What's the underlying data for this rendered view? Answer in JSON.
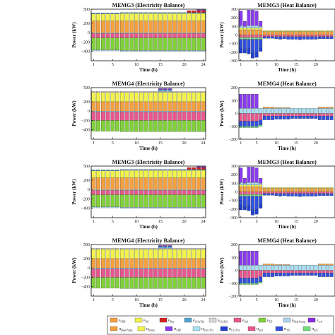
{
  "colors": {
    "chp": "#f4a040",
    "ng": "#f2f24a",
    "buy": "#d62020",
    "dch_es": "#4fa3d0",
    "ch_es": "#d9d9d9",
    "sell": "#e8588f",
    "ed": "#80d13a",
    "heat_pump": "#a8d6f0",
    "ech": "#8a2be2",
    "h_heat_pump": "#f4a040",
    "h_boiler": "#f2f24a",
    "h_chp": "#8a3cf0",
    "h_dch_ts": "#a8e0f5",
    "h_ch_ts": "#2040d0",
    "h_sell": "#e8588f",
    "h_td": "#3050e0",
    "h_ch_eh": "#6ee07a"
  },
  "chart_data": [
    {
      "type": "bar",
      "stacked": true,
      "title": "MEMG3 (Electricity Balance)",
      "xlabel": "Time (h)",
      "ylabel": "Power (kW)",
      "ylim": [
        -600,
        500
      ],
      "yticks": [
        500,
        200,
        0,
        -200,
        -400
      ],
      "xticks": [
        1,
        5,
        10,
        15,
        20,
        24
      ],
      "x": [
        1,
        2,
        3,
        4,
        5,
        6,
        7,
        8,
        9,
        10,
        11,
        12,
        13,
        14,
        15,
        16,
        17,
        18,
        19,
        20,
        21,
        22,
        23,
        24
      ],
      "series": [
        {
          "key": "chp",
          "values": [
            250,
            250,
            250,
            250,
            250,
            250,
            250,
            250,
            250,
            250,
            250,
            250,
            250,
            250,
            250,
            250,
            250,
            250,
            250,
            250,
            250,
            250,
            250,
            250
          ]
        },
        {
          "key": "ng",
          "values": [
            150,
            150,
            150,
            150,
            150,
            150,
            160,
            160,
            160,
            160,
            160,
            160,
            160,
            160,
            160,
            160,
            160,
            160,
            160,
            160,
            160,
            160,
            160,
            160
          ]
        },
        {
          "key": "dch_es",
          "values": [
            20,
            20,
            20,
            20,
            20,
            20,
            20,
            20,
            20,
            20,
            20,
            20,
            20,
            20,
            20,
            20,
            20,
            20,
            20,
            20,
            20,
            20,
            20,
            20
          ]
        },
        {
          "key": "buy",
          "values": [
            0,
            0,
            0,
            0,
            0,
            0,
            0,
            0,
            0,
            0,
            0,
            0,
            0,
            0,
            0,
            0,
            0,
            0,
            0,
            0,
            40,
            40,
            40,
            40
          ]
        },
        {
          "key": "ech",
          "values": [
            0,
            0,
            0,
            0,
            0,
            0,
            0,
            0,
            0,
            0,
            0,
            0,
            0,
            0,
            0,
            0,
            0,
            0,
            0,
            0,
            0,
            0,
            20,
            20
          ]
        },
        {
          "key": "ch_es",
          "values": [
            -20,
            -20,
            -20,
            -20,
            -20,
            -20,
            -20,
            -20,
            -20,
            -20,
            -20,
            -20,
            -20,
            -20,
            -20,
            -20,
            -20,
            -20,
            -20,
            -20,
            -20,
            -20,
            -20,
            -20
          ]
        },
        {
          "key": "sell",
          "values": [
            -90,
            -90,
            -90,
            -90,
            -90,
            -90,
            -90,
            -90,
            -90,
            -90,
            -90,
            -90,
            -90,
            -90,
            -90,
            -90,
            -90,
            -90,
            -90,
            -90,
            -90,
            -90,
            -90,
            -90
          ]
        },
        {
          "key": "ed",
          "values": [
            -260,
            -260,
            -260,
            -260,
            -260,
            -260,
            -270,
            -270,
            -270,
            -270,
            -270,
            -270,
            -270,
            -270,
            -270,
            -270,
            -270,
            -270,
            -270,
            -270,
            -270,
            -270,
            -270,
            -270
          ]
        },
        {
          "key": "heat_pump",
          "values": [
            -20,
            -20,
            -20,
            -20,
            -20,
            -20,
            -20,
            -20,
            -20,
            -20,
            -20,
            -20,
            -20,
            -20,
            -20,
            -20,
            -20,
            -20,
            -20,
            -20,
            -20,
            -20,
            -20,
            -20
          ]
        }
      ]
    },
    {
      "type": "bar",
      "stacked": true,
      "title": "MEMG3 (Heat Balance)",
      "xlabel": "Time (h)",
      "ylabel": "Power (kW)",
      "ylim": [
        -300,
        300
      ],
      "yticks": [
        300,
        200,
        100,
        0,
        -100,
        -200,
        -300
      ],
      "xticks": [
        1,
        5,
        10,
        15,
        20
      ],
      "xmax": 24,
      "x": [
        1,
        2,
        3,
        4,
        5,
        6,
        7,
        8,
        9,
        10,
        11,
        12,
        13,
        14,
        15,
        16,
        17,
        18,
        19,
        20,
        21,
        22,
        23,
        24
      ],
      "series": [
        {
          "key": "h_heat_pump",
          "values": [
            60,
            60,
            60,
            60,
            60,
            60,
            40,
            40,
            40,
            40,
            40,
            40,
            40,
            40,
            40,
            40,
            40,
            40,
            40,
            40,
            40,
            40,
            40,
            40
          ]
        },
        {
          "key": "h_boiler",
          "values": [
            20,
            20,
            20,
            20,
            20,
            20,
            10,
            10,
            10,
            10,
            10,
            10,
            10,
            10,
            10,
            10,
            10,
            10,
            10,
            10,
            10,
            10,
            10,
            10
          ]
        },
        {
          "key": "h_dch_ts",
          "values": [
            30,
            20,
            30,
            30,
            30,
            20,
            0,
            0,
            0,
            0,
            0,
            0,
            0,
            0,
            0,
            0,
            0,
            0,
            0,
            0,
            0,
            0,
            0,
            0
          ]
        },
        {
          "key": "h_chp",
          "values": [
            170,
            60,
            180,
            180,
            170,
            60,
            0,
            0,
            0,
            0,
            0,
            0,
            0,
            0,
            0,
            0,
            0,
            0,
            0,
            0,
            0,
            0,
            0,
            0
          ]
        },
        {
          "key": "h_sell",
          "values": [
            -30,
            -30,
            -30,
            -30,
            -30,
            -30,
            -20,
            -20,
            -20,
            -20,
            -20,
            -20,
            -20,
            -20,
            -20,
            -20,
            -20,
            -20,
            -20,
            -20,
            -20,
            -20,
            -20,
            -20
          ]
        },
        {
          "key": "h_ch_eh",
          "values": [
            -20,
            -20,
            -20,
            -20,
            -20,
            -20,
            0,
            0,
            0,
            0,
            0,
            0,
            0,
            0,
            0,
            0,
            0,
            0,
            0,
            0,
            0,
            0,
            0,
            0
          ]
        },
        {
          "key": "h_td",
          "values": [
            -100,
            -120,
            -110,
            -160,
            -150,
            -100,
            -20,
            -20,
            -20,
            -25,
            -30,
            -25,
            -30,
            -30,
            -30,
            -35,
            -30,
            -30,
            -30,
            -30,
            -25,
            -25,
            -25,
            -25
          ]
        },
        {
          "key": "h_ch_ts",
          "values": [
            -60,
            -40,
            -60,
            -60,
            -60,
            -40,
            0,
            0,
            0,
            0,
            0,
            0,
            0,
            0,
            0,
            0,
            0,
            0,
            0,
            0,
            0,
            0,
            0,
            0
          ]
        }
      ]
    },
    {
      "type": "bar",
      "stacked": true,
      "title": "MEMG4 (Electricity Balance)",
      "xlabel": "Time (h)",
      "ylabel": "Power (kW)",
      "ylim": [
        -600,
        500
      ],
      "yticks": [
        500,
        200,
        0,
        -200,
        -400
      ],
      "xticks": [
        1,
        5,
        10,
        15,
        20,
        24
      ],
      "x": [
        1,
        2,
        3,
        4,
        5,
        6,
        7,
        8,
        9,
        10,
        11,
        12,
        13,
        14,
        15,
        16,
        17,
        18,
        19,
        20,
        21,
        22,
        23,
        24
      ],
      "series": [
        {
          "key": "chp",
          "values": [
            200,
            200,
            200,
            200,
            200,
            200,
            200,
            200,
            200,
            200,
            200,
            200,
            200,
            200,
            200,
            200,
            200,
            200,
            200,
            200,
            200,
            200,
            200,
            200
          ]
        },
        {
          "key": "ng",
          "values": [
            200,
            200,
            200,
            200,
            200,
            200,
            200,
            200,
            200,
            200,
            200,
            200,
            200,
            200,
            200,
            200,
            200,
            200,
            200,
            200,
            200,
            200,
            200,
            200
          ]
        },
        {
          "key": "ch_es",
          "values": [
            20,
            20,
            20,
            20,
            20,
            20,
            20,
            20,
            20,
            20,
            20,
            20,
            20,
            20,
            20,
            20,
            20,
            20,
            20,
            20,
            20,
            20,
            20,
            20
          ]
        },
        {
          "key": "dch_es",
          "values": [
            0,
            0,
            0,
            0,
            0,
            0,
            0,
            0,
            0,
            0,
            0,
            0,
            0,
            0,
            40,
            40,
            40,
            0,
            0,
            0,
            0,
            0,
            0,
            0
          ]
        },
        {
          "key": "ech",
          "values": [
            0,
            0,
            0,
            0,
            0,
            0,
            0,
            0,
            0,
            0,
            0,
            0,
            0,
            0,
            20,
            20,
            20,
            0,
            0,
            0,
            0,
            0,
            0,
            0
          ]
        },
        {
          "key": "heat_pump",
          "values": [
            -20,
            -20,
            -20,
            -20,
            -20,
            -20,
            -20,
            -20,
            -20,
            -20,
            -20,
            -20,
            -20,
            -20,
            -20,
            -20,
            -20,
            -20,
            -20,
            -20,
            -20,
            -20,
            -20,
            -20
          ]
        },
        {
          "key": "sell",
          "values": [
            -180,
            -180,
            -180,
            -180,
            -180,
            -180,
            -180,
            -180,
            -180,
            -180,
            -180,
            -180,
            -180,
            -180,
            -180,
            -180,
            -180,
            -180,
            -180,
            -180,
            -180,
            -180,
            -180,
            -180
          ]
        },
        {
          "key": "ed",
          "values": [
            -230,
            -230,
            -230,
            -230,
            -230,
            -230,
            -240,
            -240,
            -240,
            -240,
            -240,
            -240,
            -240,
            -240,
            -240,
            -240,
            -240,
            -240,
            -240,
            -240,
            -240,
            -240,
            -240,
            -240
          ]
        }
      ]
    },
    {
      "type": "bar",
      "stacked": true,
      "title": "MEMG4 (Heat Balance)",
      "xlabel": "Time (h)",
      "ylabel": "Power (kW)",
      "ylim": [
        -200,
        200
      ],
      "yticks": [
        200,
        100,
        0,
        -100,
        -200
      ],
      "xticks": [
        1,
        5,
        10,
        15,
        20
      ],
      "xmax": 24,
      "x": [
        1,
        2,
        3,
        4,
        5,
        6,
        7,
        8,
        9,
        10,
        11,
        12,
        13,
        14,
        15,
        16,
        17,
        18,
        19,
        20,
        21,
        22,
        23,
        24
      ],
      "series": [
        {
          "key": "h_dch_ts",
          "values": [
            40,
            40,
            40,
            40,
            40,
            40,
            40,
            40,
            40,
            40,
            40,
            40,
            40,
            40,
            40,
            40,
            40,
            40,
            40,
            40,
            40,
            40,
            40,
            40
          ]
        },
        {
          "key": "h_chp",
          "values": [
            110,
            110,
            110,
            110,
            110,
            0,
            0,
            0,
            0,
            0,
            0,
            0,
            0,
            0,
            0,
            0,
            0,
            0,
            0,
            0,
            0,
            0,
            0,
            0
          ]
        },
        {
          "key": "h_heat_pump",
          "values": [
            0,
            0,
            0,
            0,
            0,
            0,
            10,
            10,
            10,
            5,
            5,
            5,
            5,
            0,
            0,
            0,
            0,
            0,
            0,
            0,
            10,
            10,
            10,
            10
          ]
        },
        {
          "key": "h_sell",
          "values": [
            -60,
            -60,
            -60,
            -60,
            -60,
            -50,
            -20,
            -20,
            -20,
            -20,
            -20,
            -20,
            -20,
            -20,
            -20,
            -20,
            -20,
            -20,
            -20,
            -20,
            -20,
            -20,
            -20,
            -20
          ]
        },
        {
          "key": "h_td",
          "values": [
            -40,
            -40,
            -40,
            -40,
            -40,
            -40,
            -30,
            -30,
            -30,
            -25,
            -25,
            -25,
            -25,
            -20,
            -20,
            -20,
            -20,
            -20,
            -20,
            -20,
            -30,
            -30,
            -30,
            -30
          ]
        },
        {
          "key": "h_ch_eh",
          "values": [
            -10,
            -10,
            -10,
            -10,
            -10,
            -10,
            0,
            0,
            0,
            0,
            0,
            0,
            0,
            0,
            0,
            0,
            0,
            0,
            0,
            0,
            0,
            0,
            0,
            0
          ]
        }
      ]
    }
  ],
  "legend": {
    "row1": [
      {
        "key": "chp",
        "base": "P",
        "sub": "CHP"
      },
      {
        "key": "ng",
        "base": "P",
        "sub": "NG"
      },
      {
        "key": "buy",
        "base": "P",
        "sub": "Buy"
      },
      {
        "key": "dch_es",
        "base": "P",
        "sub": "dCh (ES)"
      },
      {
        "key": "ch_es",
        "base": "P",
        "sub": "Ch (ES)"
      },
      {
        "key": "sell",
        "base": "P",
        "sub": "Sell"
      },
      {
        "key": "ed",
        "base": "P",
        "sub": "ED"
      },
      {
        "key": "heat_pump",
        "base": "P",
        "sub": "Heat Pump"
      },
      {
        "key": "ech",
        "base": "P",
        "sub": "ech"
      }
    ],
    "row2": [
      {
        "key": "h_heat_pump",
        "base": "H",
        "sub": "Heat Pump"
      },
      {
        "key": "h_boiler",
        "base": "H",
        "sub": "Boiler"
      },
      {
        "key": "h_chp",
        "base": "H",
        "sub": "CHP"
      },
      {
        "key": "h_dch_ts",
        "base": "H",
        "sub": "dCh (TS)"
      },
      {
        "key": "h_ch_ts",
        "base": "H",
        "sub": "Ch (TS)"
      },
      {
        "key": "h_sell",
        "base": "H",
        "sub": "Sell"
      },
      {
        "key": "h_td",
        "base": "H",
        "sub": "TD"
      },
      {
        "key": "h_ch_eh",
        "base": "H",
        "sub": "hch"
      }
    ]
  }
}
